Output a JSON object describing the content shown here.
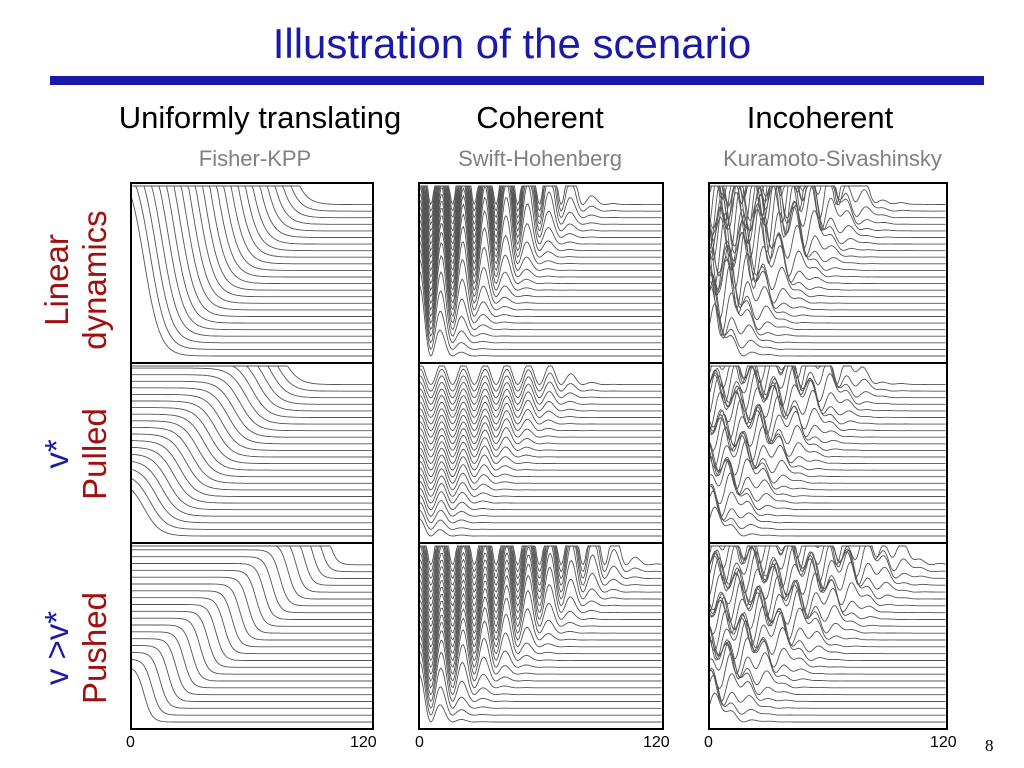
{
  "title": "Illustration of the scenario",
  "columns": [
    {
      "heading": "Uniformly translating",
      "subtitle": "Fisher-KPP"
    },
    {
      "heading": "Coherent",
      "subtitle": "Swift-Hohenberg"
    },
    {
      "heading": "Incoherent",
      "subtitle": "Kuramoto-Sivashinsky"
    }
  ],
  "rows": [
    {
      "line1": "Linear",
      "line2": "dynamics"
    },
    {
      "line1": "v*",
      "line2": "Pulled"
    },
    {
      "line1": "v >v*",
      "line2": "Pushed"
    }
  ],
  "axis": {
    "xmin_label": "0",
    "xmax_label": "120"
  },
  "page_number": "8",
  "colors": {
    "title": "#1a1aa8",
    "rule": "#1a1aa8",
    "red_label": "#a01010",
    "blue_label": "#1a1aa8",
    "subtitle": "#808080"
  }
}
